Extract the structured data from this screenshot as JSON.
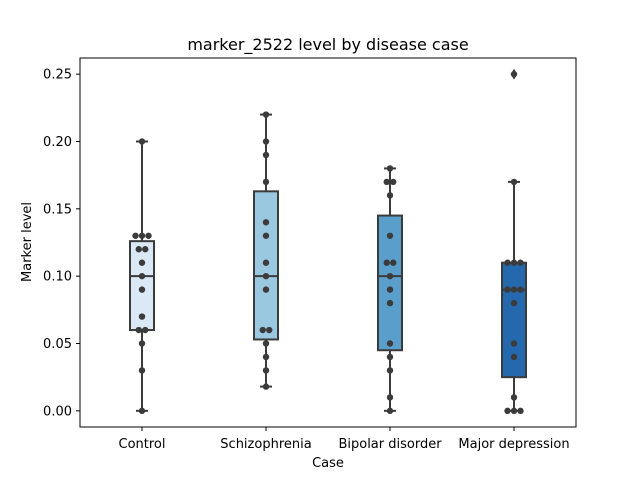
{
  "chart_data": {
    "type": "box",
    "title": "marker_2522 level by disease case",
    "xlabel": "Case",
    "ylabel": "Marker level",
    "ylim": [
      -0.012,
      0.262
    ],
    "yticks": [
      "0.00",
      "0.05",
      "0.10",
      "0.15",
      "0.20",
      "0.25"
    ],
    "grid": false,
    "categories": [
      "Control",
      "Schizophrenia",
      "Bipolar disorder",
      "Major depression"
    ],
    "colors": [
      "#dbe9f6",
      "#9ac8e0",
      "#5a9fcc",
      "#2468ad"
    ],
    "boxes": [
      {
        "category": "Control",
        "min": 0.0,
        "q1": 0.06,
        "median": 0.1,
        "q3": 0.126,
        "max": 0.2,
        "outliers": []
      },
      {
        "category": "Schizophrenia",
        "min": 0.018,
        "q1": 0.053,
        "median": 0.1,
        "q3": 0.163,
        "max": 0.22,
        "outliers": []
      },
      {
        "category": "Bipolar disorder",
        "min": 0.0,
        "q1": 0.045,
        "median": 0.1,
        "q3": 0.145,
        "max": 0.18,
        "outliers": []
      },
      {
        "category": "Major depression",
        "min": 0.0,
        "q1": 0.025,
        "median": 0.09,
        "q3": 0.11,
        "max": 0.17,
        "outliers": [
          0.25
        ]
      }
    ],
    "points": [
      [
        0.0,
        0.03,
        0.05,
        0.06,
        0.06,
        0.07,
        0.09,
        0.1,
        0.11,
        0.12,
        0.12,
        0.13,
        0.13,
        0.13,
        0.2
      ],
      [
        0.018,
        0.03,
        0.04,
        0.05,
        0.06,
        0.06,
        0.09,
        0.1,
        0.11,
        0.13,
        0.14,
        0.17,
        0.19,
        0.2,
        0.22
      ],
      [
        0.0,
        0.01,
        0.03,
        0.04,
        0.05,
        0.08,
        0.09,
        0.1,
        0.11,
        0.11,
        0.13,
        0.16,
        0.17,
        0.17,
        0.18
      ],
      [
        0.0,
        0.0,
        0.0,
        0.01,
        0.04,
        0.05,
        0.08,
        0.09,
        0.09,
        0.09,
        0.11,
        0.11,
        0.11,
        0.17,
        0.25
      ]
    ]
  }
}
